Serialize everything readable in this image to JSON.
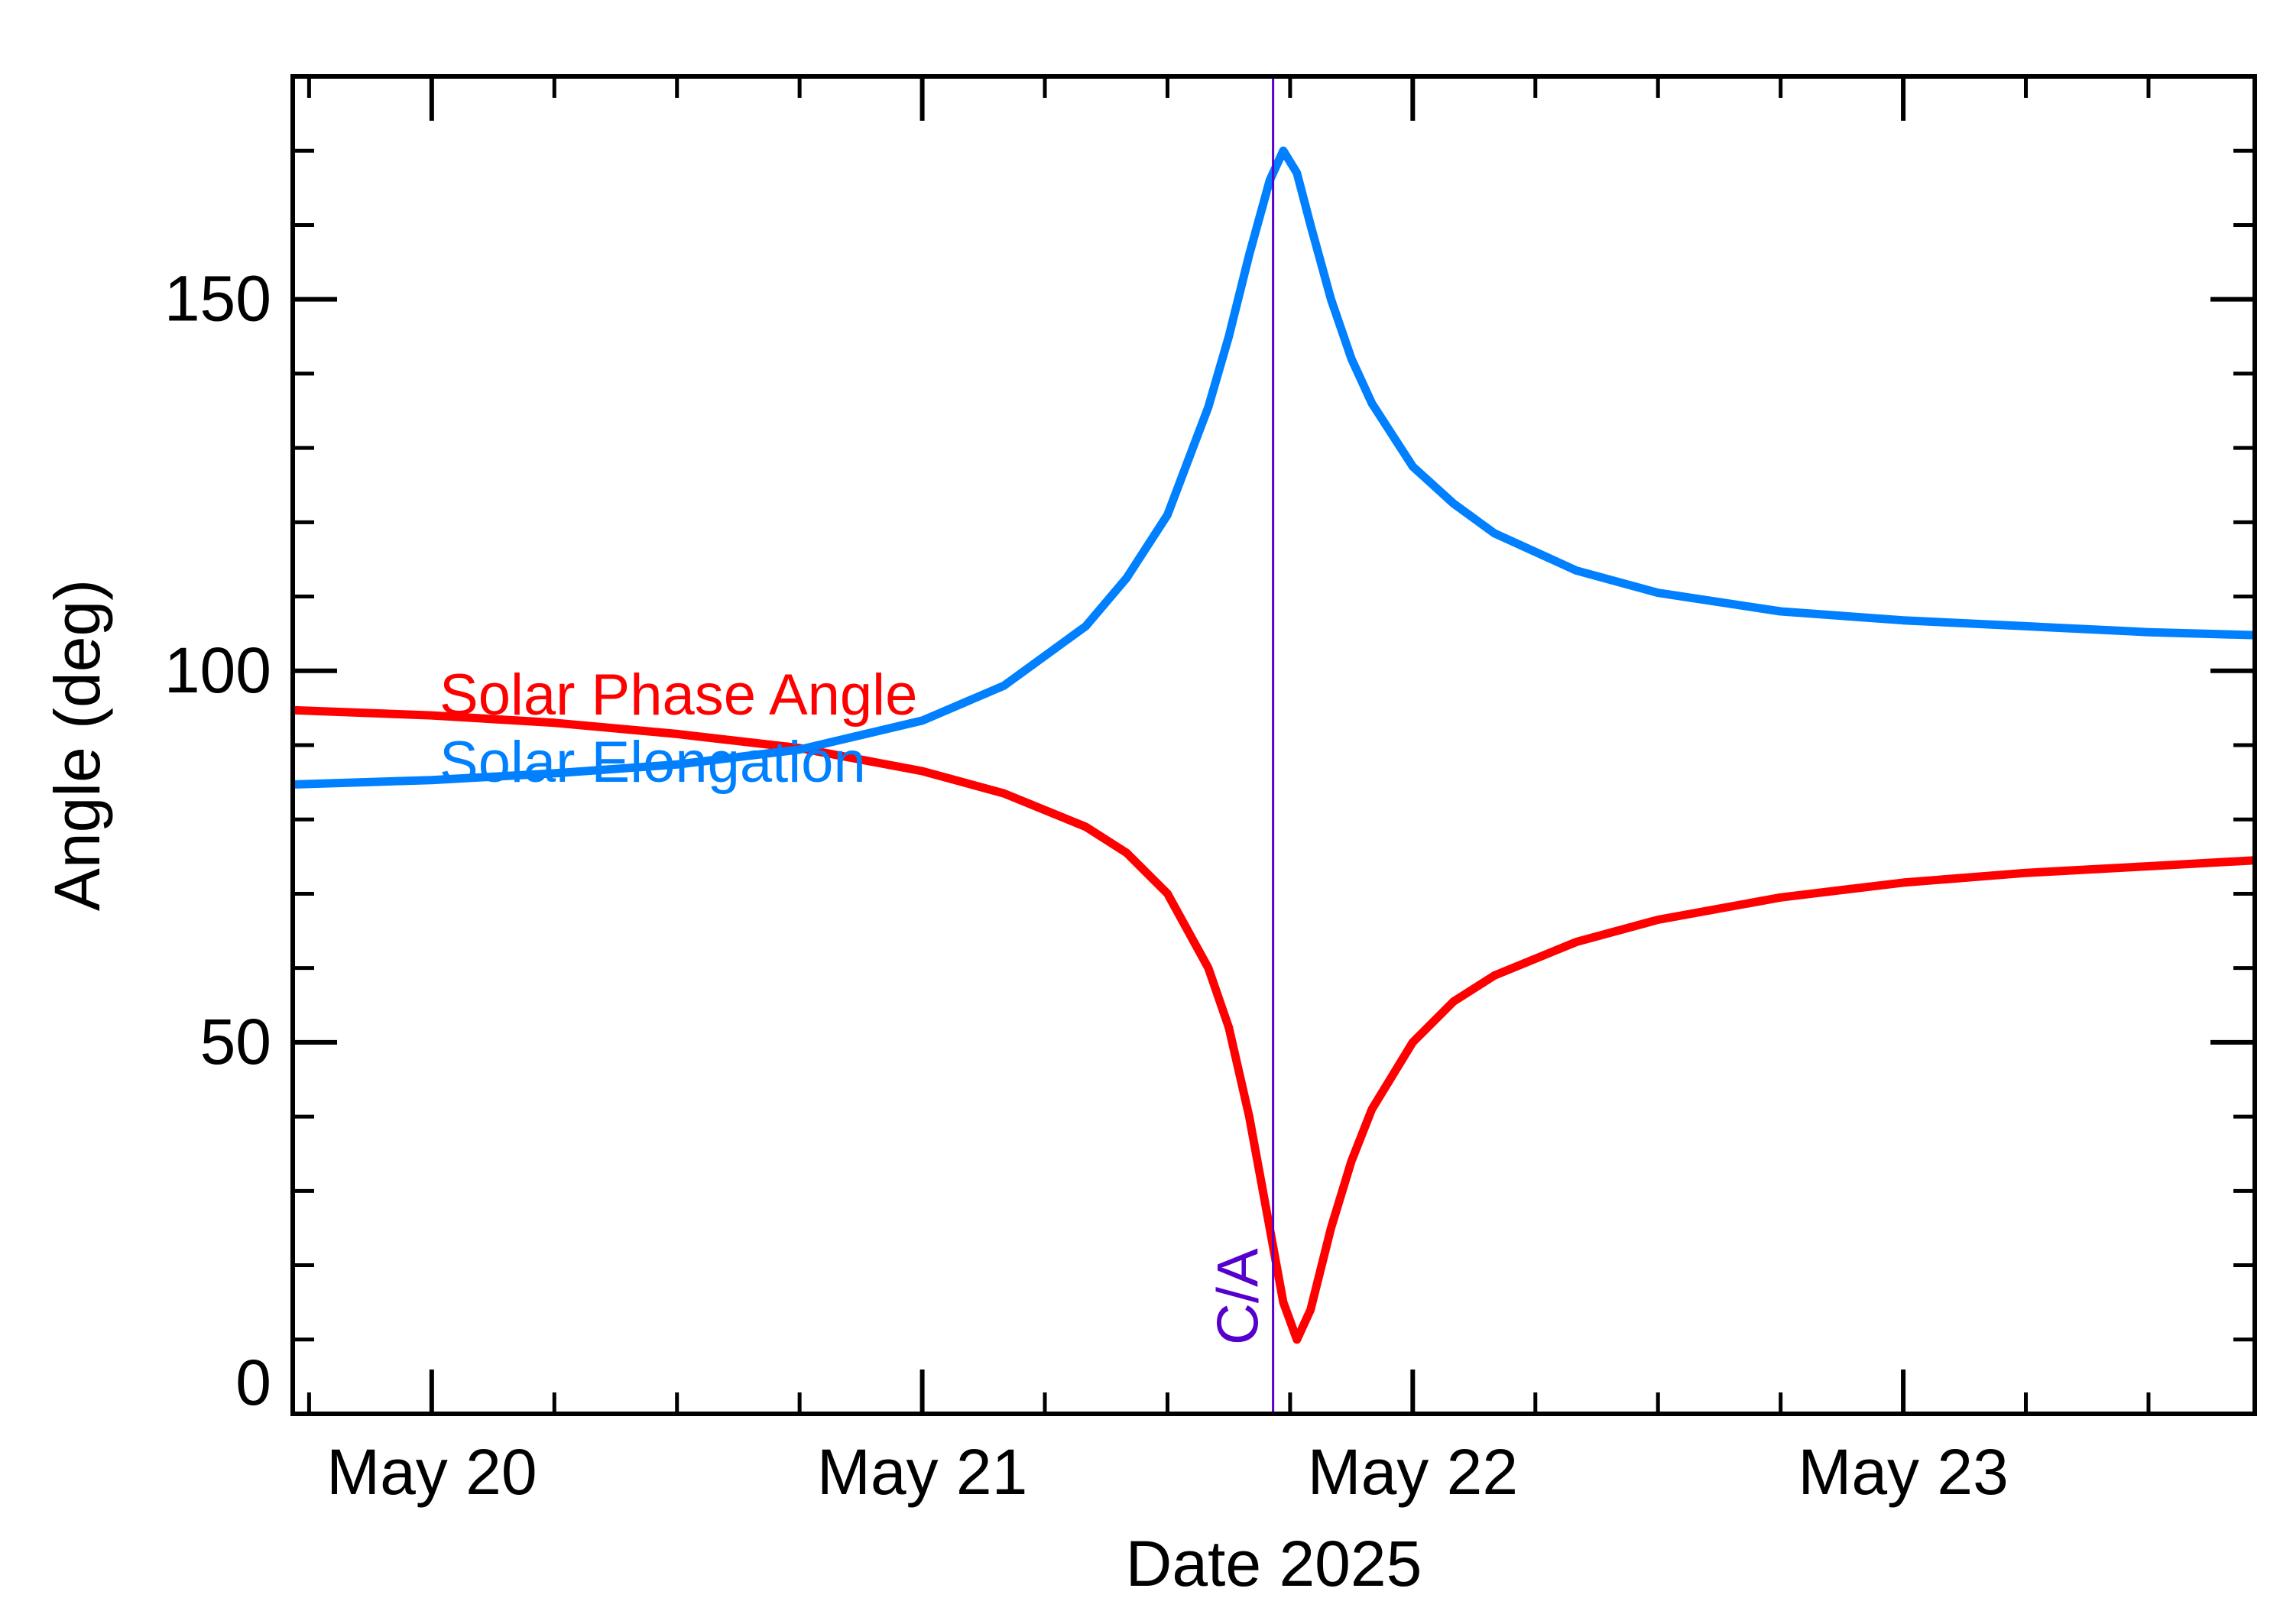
{
  "chart_data": {
    "type": "line",
    "xlabel": "Date 2025",
    "ylabel": "Angle (deg)",
    "xlim": [
      "2025-05-19T17:12",
      "2025-05-23T17:12"
    ],
    "ylim": [
      0,
      180
    ],
    "x_ticks": [
      "May 20",
      "May 21",
      "May 22",
      "May 23"
    ],
    "x_tick_values": [
      "2025-05-20T00:00",
      "2025-05-21T00:00",
      "2025-05-22T00:00",
      "2025-05-23T00:00"
    ],
    "y_ticks": [
      "0",
      "50",
      "100",
      "150"
    ],
    "y_tick_values": [
      0,
      50,
      100,
      150
    ],
    "grid": false,
    "annotations": [
      {
        "text": "C/A",
        "x": "2025-05-21T17:10",
        "color": "#5500cc"
      }
    ],
    "series": [
      {
        "name": "Solar Phase Angle",
        "color": "#ff0000",
        "x": [
          "2025-05-19T17:12",
          "2025-05-20T00:00",
          "2025-05-20T06:00",
          "2025-05-20T12:00",
          "2025-05-20T18:00",
          "2025-05-21T00:00",
          "2025-05-21T04:00",
          "2025-05-21T08:00",
          "2025-05-21T10:00",
          "2025-05-21T12:00",
          "2025-05-21T14:00",
          "2025-05-21T15:00",
          "2025-05-21T16:00",
          "2025-05-21T17:00",
          "2025-05-21T17:40",
          "2025-05-21T18:20",
          "2025-05-21T19:00",
          "2025-05-21T20:00",
          "2025-05-21T21:00",
          "2025-05-21T22:00",
          "2025-05-22T00:00",
          "2025-05-22T02:00",
          "2025-05-22T04:00",
          "2025-05-22T08:00",
          "2025-05-22T12:00",
          "2025-05-22T18:00",
          "2025-05-23T00:00",
          "2025-05-23T06:00",
          "2025-05-23T12:00",
          "2025-05-23T17:12"
        ],
        "y": [
          94.7,
          94,
          93,
          91.5,
          89.6,
          86.5,
          83.5,
          79,
          75.5,
          70,
          60,
          52,
          40,
          25,
          15,
          10,
          14,
          25,
          34,
          41,
          50,
          55.5,
          59,
          63.5,
          66.5,
          69.5,
          71.5,
          72.8,
          73.7,
          74.5
        ]
      },
      {
        "name": "Solar Elongation",
        "color": "#0080ff",
        "x": [
          "2025-05-19T17:12",
          "2025-05-20T00:00",
          "2025-05-20T06:00",
          "2025-05-20T12:00",
          "2025-05-20T18:00",
          "2025-05-21T00:00",
          "2025-05-21T04:00",
          "2025-05-21T08:00",
          "2025-05-21T10:00",
          "2025-05-21T12:00",
          "2025-05-21T14:00",
          "2025-05-21T15:00",
          "2025-05-21T16:00",
          "2025-05-21T17:00",
          "2025-05-21T17:40",
          "2025-05-21T18:20",
          "2025-05-21T19:00",
          "2025-05-21T20:00",
          "2025-05-21T21:00",
          "2025-05-21T22:00",
          "2025-05-22T00:00",
          "2025-05-22T02:00",
          "2025-05-22T04:00",
          "2025-05-22T08:00",
          "2025-05-22T12:00",
          "2025-05-22T18:00",
          "2025-05-23T00:00",
          "2025-05-23T06:00",
          "2025-05-23T12:00",
          "2025-05-23T17:12"
        ],
        "y": [
          84.7,
          85.3,
          86.2,
          87.4,
          89.4,
          93.3,
          98,
          106,
          112.5,
          121,
          135.5,
          145,
          156,
          166,
          170,
          167,
          160,
          150,
          142,
          136,
          127.5,
          122.5,
          118.5,
          113.5,
          110.5,
          108,
          106.8,
          106,
          105.2,
          104.8
        ]
      }
    ]
  }
}
